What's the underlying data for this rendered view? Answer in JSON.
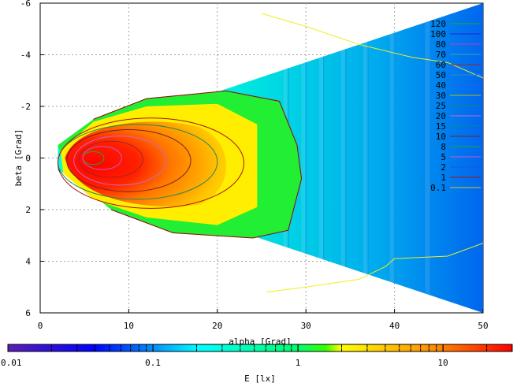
{
  "chart_data": {
    "type": "heatmap",
    "title": "",
    "xlabel": "alpha [Grad]",
    "ylabel": "beta [Grad]",
    "xlim": [
      0,
      50
    ],
    "ylim": [
      -6,
      6
    ],
    "y_axis_inverted": true,
    "xticks": [
      "0",
      "10",
      "20",
      "30",
      "40",
      "50"
    ],
    "yticks": [
      "-6",
      "-4",
      "-2",
      "0",
      "2",
      "4",
      "6"
    ],
    "grid": true,
    "colorbar": {
      "label": "E [lx]",
      "scale": "log",
      "range": [
        0.01,
        30
      ],
      "ticks": [
        "0.01",
        "0.1",
        "1",
        "10"
      ],
      "colors": [
        "#5a1fb4",
        "#0000ff",
        "#00ffff",
        "#00ff00",
        "#ffff00",
        "#ff8800",
        "#ff0000"
      ]
    },
    "contour_levels": [
      "120",
      "100",
      "80",
      "70",
      "60",
      "50",
      "40",
      "30",
      "25",
      "20",
      "15",
      "10",
      "8",
      "5",
      "2",
      "1",
      "0.1"
    ],
    "contour_colors": [
      "#22aa22",
      "#2222cc",
      "#cc33cc",
      "#33aaaa",
      "#aa2222",
      "#3388cc",
      "#2266ee",
      "#bbbb00",
      "#228855",
      "#cc66cc",
      "#008888",
      "#772222",
      "#22aa22",
      "#cc55cc",
      "#2255dd",
      "#aa1111",
      "#cccc22"
    ],
    "field_extent": {
      "apex_alpha": 2,
      "beta_at_apex": 0.5,
      "right_alpha": 50,
      "beta_at_right": 6
    }
  }
}
